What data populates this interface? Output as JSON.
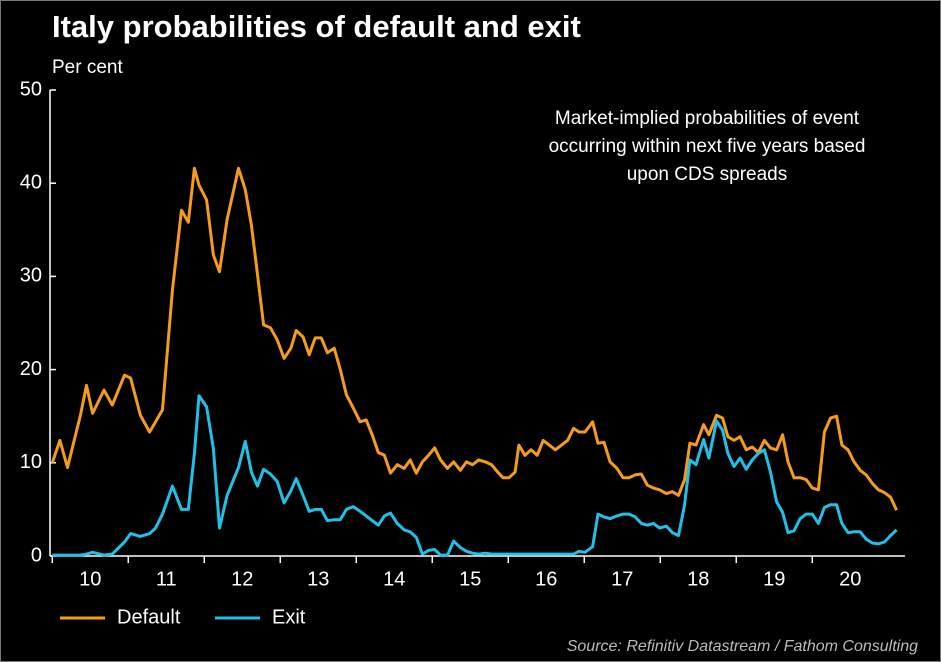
{
  "chart_data": {
    "type": "line",
    "title": "Italy probabilities of default and exit",
    "y_label": "Per cent",
    "annotation": [
      "Market-implied probabilities of event",
      "occurring within next five years based",
      "upon CDS spreads"
    ],
    "source": "Source: Refinitiv Datastream / Fathom Consulting",
    "x": [
      10.0,
      10.1,
      10.2,
      10.37,
      10.45,
      10.53,
      10.68,
      10.79,
      10.95,
      11.03,
      11.16,
      11.28,
      11.36,
      11.45,
      11.58,
      11.7,
      11.79,
      11.87,
      11.93,
      12.03,
      12.12,
      12.2,
      12.3,
      12.45,
      12.54,
      12.62,
      12.7,
      12.78,
      12.87,
      12.96,
      13.05,
      13.14,
      13.21,
      13.3,
      13.38,
      13.46,
      13.54,
      13.62,
      13.71,
      13.79,
      13.87,
      13.96,
      14.05,
      14.13,
      14.21,
      14.29,
      14.37,
      14.45,
      14.54,
      14.63,
      14.71,
      14.79,
      14.87,
      14.95,
      15.03,
      15.11,
      15.2,
      15.28,
      15.37,
      15.45,
      15.53,
      15.61,
      15.7,
      15.78,
      15.86,
      15.93,
      16.01,
      16.09,
      16.14,
      16.22,
      16.3,
      16.38,
      16.46,
      16.54,
      16.62,
      16.7,
      16.78,
      16.86,
      16.93,
      17.01,
      17.11,
      17.18,
      17.26,
      17.34,
      17.43,
      17.51,
      17.59,
      17.67,
      17.75,
      17.83,
      17.91,
      17.99,
      18.08,
      18.16,
      18.24,
      18.32,
      18.39,
      18.47,
      18.57,
      18.64,
      18.74,
      18.82,
      18.89,
      18.97,
      19.05,
      19.13,
      19.21,
      19.29,
      19.37,
      19.45,
      19.53,
      19.61,
      19.68,
      19.76,
      19.84,
      19.92,
      20.0,
      20.08,
      20.16,
      20.24,
      20.32,
      20.39,
      20.47,
      20.55,
      20.63,
      20.71,
      20.79,
      20.87,
      20.95,
      21.03,
      21.11
    ],
    "series": [
      {
        "name": "Default",
        "color": "#f59c1a",
        "values": [
          10.0,
          12.4,
          9.5,
          15.1,
          18.3,
          15.3,
          17.8,
          16.2,
          19.4,
          19.1,
          15.1,
          13.3,
          14.4,
          15.7,
          28.5,
          37.1,
          35.8,
          41.6,
          39.8,
          38.2,
          32.3,
          30.5,
          36.1,
          41.6,
          39.3,
          35.5,
          30.2,
          24.8,
          24.5,
          23.2,
          21.2,
          22.3,
          24.2,
          23.5,
          21.6,
          23.4,
          23.4,
          21.8,
          22.3,
          20.0,
          17.3,
          15.9,
          14.4,
          14.6,
          13.0,
          11.1,
          10.8,
          8.9,
          9.8,
          9.4,
          10.3,
          8.9,
          10.1,
          10.8,
          11.6,
          10.3,
          9.4,
          10.1,
          9.2,
          10.1,
          9.8,
          10.3,
          10.1,
          9.8,
          9.0,
          8.4,
          8.4,
          9.0,
          11.9,
          10.8,
          11.4,
          10.8,
          12.4,
          11.9,
          11.4,
          11.9,
          12.4,
          13.7,
          13.3,
          13.3,
          14.4,
          12.1,
          12.2,
          10.1,
          9.4,
          8.4,
          8.4,
          8.7,
          8.8,
          7.6,
          7.3,
          7.1,
          6.7,
          6.9,
          6.5,
          8.2,
          12.1,
          11.9,
          14.1,
          13.0,
          15.1,
          14.8,
          12.8,
          12.4,
          12.8,
          11.4,
          11.7,
          11.1,
          12.4,
          11.6,
          11.4,
          13.0,
          10.1,
          8.4,
          8.4,
          8.2,
          7.3,
          7.1,
          13.3,
          14.8,
          15.0,
          11.9,
          11.4,
          10.1,
          9.2,
          8.7,
          7.8,
          7.1,
          6.8,
          6.3,
          4.9
        ]
      },
      {
        "name": "Exit",
        "color": "#1fc1e8",
        "values": [
          0.1,
          0.1,
          0.1,
          0.1,
          0.2,
          0.4,
          0.1,
          0.2,
          1.5,
          2.4,
          2.1,
          2.4,
          3.0,
          4.5,
          7.5,
          5.0,
          5.0,
          11.0,
          17.2,
          16.0,
          11.5,
          3.0,
          6.5,
          9.5,
          12.3,
          9.0,
          7.5,
          9.3,
          8.8,
          8.0,
          5.7,
          7.0,
          8.3,
          6.5,
          4.8,
          5.0,
          5.0,
          3.8,
          3.9,
          3.9,
          5.0,
          5.3,
          4.8,
          4.3,
          3.8,
          3.3,
          4.3,
          4.6,
          3.5,
          2.8,
          2.6,
          2.0,
          0.2,
          0.6,
          0.7,
          0.1,
          0.1,
          1.6,
          0.9,
          0.5,
          0.3,
          0.2,
          0.3,
          0.2,
          0.2,
          0.2,
          0.2,
          0.2,
          0.2,
          0.2,
          0.2,
          0.2,
          0.2,
          0.2,
          0.2,
          0.2,
          0.2,
          0.2,
          0.5,
          0.4,
          1.0,
          4.5,
          4.2,
          4.0,
          4.3,
          4.5,
          4.5,
          4.2,
          3.5,
          3.3,
          3.5,
          3.0,
          3.2,
          2.5,
          2.2,
          5.5,
          10.3,
          9.8,
          12.5,
          10.5,
          14.5,
          13.5,
          11.0,
          9.6,
          10.5,
          9.3,
          10.3,
          11.0,
          11.4,
          9.0,
          5.8,
          4.7,
          2.5,
          2.7,
          4.0,
          4.5,
          4.5,
          3.5,
          5.2,
          5.5,
          5.5,
          3.5,
          2.5,
          2.6,
          2.6,
          1.8,
          1.4,
          1.3,
          1.5,
          2.2,
          2.8
        ]
      }
    ],
    "xlim": [
      9.97,
      21.22
    ],
    "xticks": [
      {
        "value": 10.5,
        "label": "10"
      },
      {
        "value": 11.5,
        "label": "11"
      },
      {
        "value": 12.5,
        "label": "12"
      },
      {
        "value": 13.5,
        "label": "13"
      },
      {
        "value": 14.5,
        "label": "14"
      },
      {
        "value": 15.5,
        "label": "15"
      },
      {
        "value": 16.5,
        "label": "16"
      },
      {
        "value": 17.5,
        "label": "17"
      },
      {
        "value": 18.5,
        "label": "18"
      },
      {
        "value": 19.5,
        "label": "19"
      },
      {
        "value": 20.5,
        "label": "20"
      }
    ],
    "ylim": [
      0,
      50
    ],
    "yticks": [
      0,
      10,
      20,
      30,
      40,
      50
    ],
    "grid": false
  }
}
